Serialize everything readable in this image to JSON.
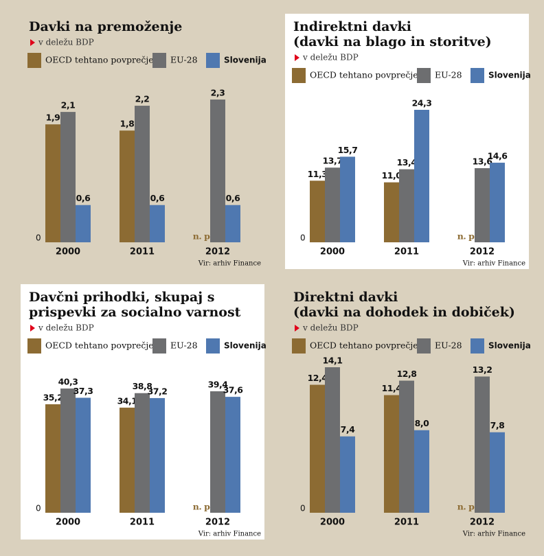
{
  "chart_data": [
    {
      "type": "bar",
      "title": [
        "Davki na premoženje"
      ],
      "subtitle": "v deležu BDP",
      "background": "#dad1be",
      "categories": [
        "2000",
        "2011",
        "2012"
      ],
      "series": [
        {
          "name": "OECD tehtano povprečje",
          "color": "#8c6b33",
          "values": [
            1.9,
            1.8,
            null
          ],
          "value_labels": [
            "1,9",
            "1,8",
            "n. p."
          ]
        },
        {
          "name": "EU-28",
          "color": "#6d6e70",
          "values": [
            2.1,
            2.2,
            2.3
          ],
          "value_labels": [
            "2,1",
            "2,2",
            "2,3"
          ]
        },
        {
          "name": "Slovenija",
          "color": "#4f78b0",
          "values": [
            0.6,
            0.6,
            0.6
          ],
          "value_labels": [
            "0,6",
            "0,6",
            "0,6"
          ]
        }
      ],
      "ylim": [
        0,
        2.3
      ],
      "yticks": [
        0
      ],
      "grid": false,
      "source": "Vir: arhiv Finance"
    },
    {
      "type": "bar",
      "title": [
        "Indirektni davki",
        "(davki na blago in storitve)"
      ],
      "subtitle": "v deležu BDP",
      "background": "#ffffff",
      "categories": [
        "2000",
        "2011",
        "2012"
      ],
      "series": [
        {
          "name": "OECD tehtano povprečje",
          "color": "#8c6b33",
          "values": [
            11.3,
            11.0,
            null
          ],
          "value_labels": [
            "11,3",
            "11,0",
            "n. p."
          ]
        },
        {
          "name": "EU-28",
          "color": "#6d6e70",
          "values": [
            13.7,
            13.4,
            13.6
          ],
          "value_labels": [
            "13,7",
            "13,4",
            "13,6"
          ]
        },
        {
          "name": "Slovenija",
          "color": "#4f78b0",
          "values": [
            15.7,
            24.3,
            14.6
          ],
          "value_labels": [
            "15,7",
            "24,3",
            "14,6"
          ]
        }
      ],
      "ylim": [
        0,
        24.3
      ],
      "yticks": [
        0
      ],
      "grid": false,
      "source": "Vir: arhiv Finance"
    },
    {
      "type": "bar",
      "title": [
        "Davčni prihodki, skupaj s",
        "prispevki za socialno varnost"
      ],
      "subtitle": "v deležu BDP",
      "background": "#ffffff",
      "categories": [
        "2000",
        "2011",
        "2012"
      ],
      "series": [
        {
          "name": "OECD tehtano povprečje",
          "color": "#8c6b33",
          "values": [
            35.2,
            34.1,
            null
          ],
          "value_labels": [
            "35,2",
            "34,1",
            "n. p."
          ]
        },
        {
          "name": "EU-28",
          "color": "#6d6e70",
          "values": [
            40.3,
            38.8,
            39.4
          ],
          "value_labels": [
            "40,3",
            "38,8",
            "39,4"
          ]
        },
        {
          "name": "Slovenija",
          "color": "#4f78b0",
          "values": [
            37.3,
            37.2,
            37.6
          ],
          "value_labels": [
            "37,3",
            "37,2",
            "37,6"
          ]
        }
      ],
      "ylim": [
        0,
        40.3
      ],
      "yticks": [
        0
      ],
      "grid": false,
      "source": "Vir: arhiv Finance"
    },
    {
      "type": "bar",
      "title": [
        "Direktni davki",
        "(davki na dohodek in dobiček)"
      ],
      "subtitle": "v deležu BDP",
      "background": "#dad1be",
      "categories": [
        "2000",
        "2011",
        "2012"
      ],
      "series": [
        {
          "name": "OECD tehtano povprečje",
          "color": "#8c6b33",
          "values": [
            12.4,
            11.4,
            null
          ],
          "value_labels": [
            "12,4",
            "11,4",
            "n. p."
          ]
        },
        {
          "name": "EU-28",
          "color": "#6d6e70",
          "values": [
            14.1,
            12.8,
            13.2
          ],
          "value_labels": [
            "14,1",
            "12,8",
            "13,2"
          ]
        },
        {
          "name": "Slovenija",
          "color": "#4f78b0",
          "values": [
            7.4,
            8.0,
            7.8
          ],
          "value_labels": [
            "7,4",
            "8,0",
            "7,8"
          ]
        }
      ],
      "ylim": [
        0,
        14.1
      ],
      "yticks": [
        0
      ],
      "grid": false,
      "source": "Vir: arhiv Finance"
    }
  ]
}
